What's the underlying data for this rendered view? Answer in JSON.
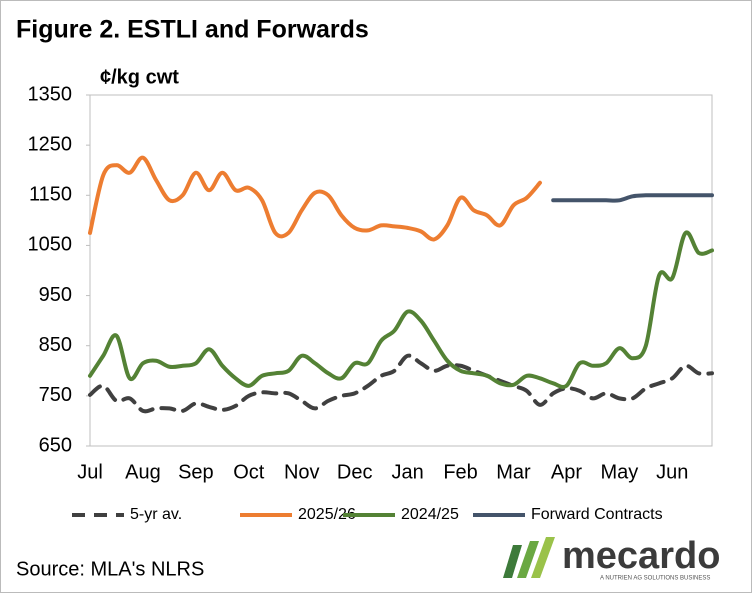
{
  "chart_data": {
    "type": "line",
    "title": "Figure 2. ESTLI and Forwards",
    "y_label": "¢/kg cwt",
    "source": "Source: MLA's NLRS",
    "logo_text": "mecardo",
    "logo_tagline": "A NUTRIEN AG SOLUTIONS BUSINESS",
    "categories": [
      "Jul",
      null,
      null,
      null,
      "Aug",
      null,
      null,
      null,
      "Sep",
      null,
      null,
      null,
      "Oct",
      null,
      null,
      null,
      "Nov",
      null,
      null,
      null,
      "Dec",
      null,
      null,
      null,
      "Jan",
      null,
      null,
      null,
      "Feb",
      null,
      null,
      null,
      "Mar",
      null,
      null,
      null,
      "Apr",
      null,
      null,
      null,
      "May",
      null,
      null,
      null,
      "Jun",
      null,
      null,
      null
    ],
    "ylim": [
      650,
      1350
    ],
    "yticks": [
      650,
      750,
      850,
      950,
      1050,
      1150,
      1250,
      1350
    ],
    "grid": false,
    "legend": "bottom",
    "series": [
      {
        "name": "5-yr av.",
        "color": "#404040",
        "dashed": true,
        "values": [
          752,
          770,
          740,
          745,
          720,
          725,
          725,
          720,
          735,
          728,
          722,
          730,
          750,
          757,
          755,
          755,
          740,
          725,
          740,
          750,
          755,
          770,
          790,
          800,
          830,
          815,
          800,
          810,
          810,
          800,
          790,
          780,
          770,
          760,
          732,
          755,
          765,
          760,
          745,
          755,
          745,
          745,
          765,
          775,
          785,
          810,
          795,
          795
        ]
      },
      {
        "name": "2025/26",
        "color": "#ED7D31",
        "values": [
          1075,
          1190,
          1210,
          1195,
          1225,
          1180,
          1140,
          1150,
          1195,
          1160,
          1195,
          1160,
          1165,
          1140,
          1075,
          1075,
          1120,
          1155,
          1150,
          1110,
          1085,
          1080,
          1090,
          1088,
          1085,
          1078,
          1062,
          1090,
          1145,
          1120,
          1110,
          1090,
          1130,
          1145,
          1175,
          null,
          null,
          null,
          null,
          null,
          null,
          null,
          null,
          null,
          null,
          null,
          null,
          null
        ]
      },
      {
        "name": "2024/25",
        "color": "#548235",
        "values": [
          790,
          830,
          870,
          785,
          815,
          820,
          808,
          810,
          815,
          843,
          810,
          785,
          770,
          790,
          795,
          800,
          830,
          815,
          795,
          785,
          815,
          815,
          860,
          880,
          918,
          900,
          860,
          820,
          800,
          795,
          790,
          775,
          772,
          790,
          785,
          775,
          770,
          815,
          810,
          815,
          845,
          825,
          850,
          990,
          985,
          1075,
          1035,
          1040
        ]
      },
      {
        "name": "Forward Contracts",
        "color": "#44546A",
        "values": [
          null,
          null,
          null,
          null,
          null,
          null,
          null,
          null,
          null,
          null,
          null,
          null,
          null,
          null,
          null,
          null,
          null,
          null,
          null,
          null,
          null,
          null,
          null,
          null,
          null,
          null,
          null,
          null,
          null,
          null,
          null,
          null,
          null,
          null,
          null,
          1140,
          1140,
          1140,
          1140,
          1140,
          1140,
          1148,
          1150,
          1150,
          1150,
          1150,
          1150,
          1150
        ]
      }
    ]
  }
}
